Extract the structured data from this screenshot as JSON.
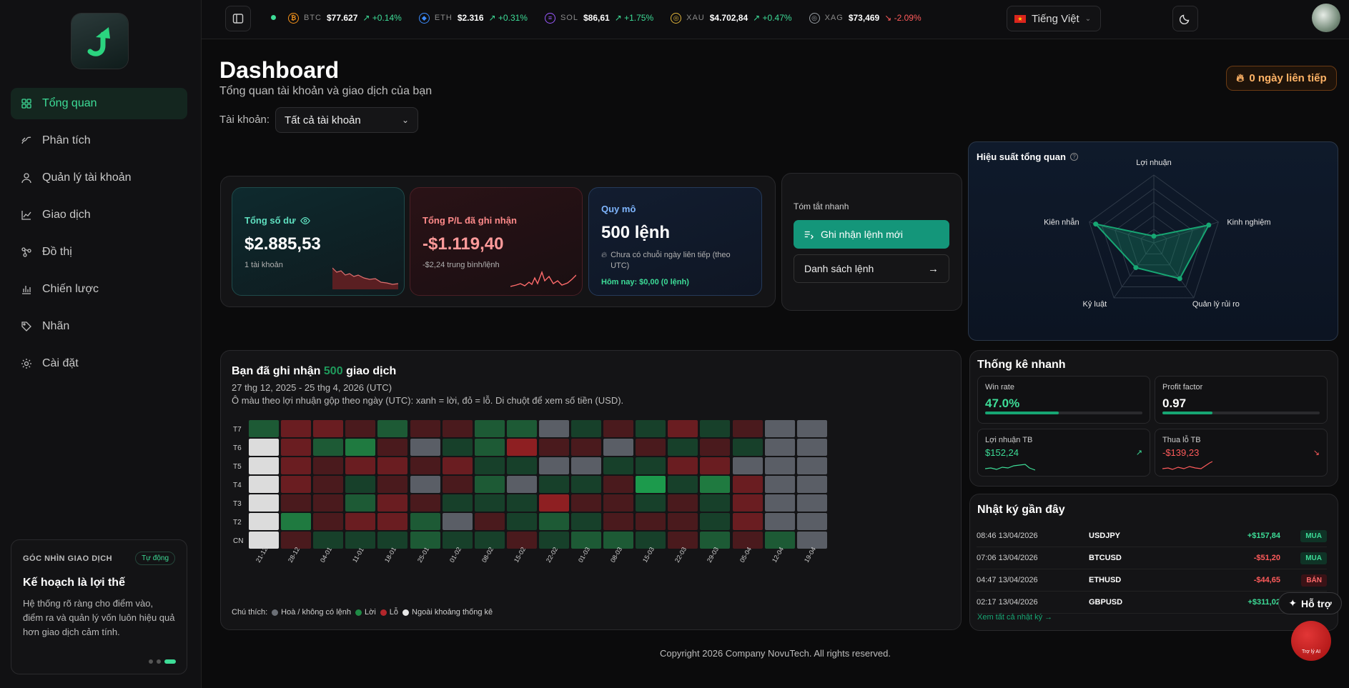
{
  "sidebar": {
    "items": [
      {
        "label": "Tổng quan",
        "icon": "grid-icon",
        "active": true
      },
      {
        "label": "Phân tích",
        "icon": "analytics-icon"
      },
      {
        "label": "Quản lý tài khoản",
        "icon": "user-icon"
      },
      {
        "label": "Giao dịch",
        "icon": "trend-icon"
      },
      {
        "label": "Đồ thị",
        "icon": "graph-icon"
      },
      {
        "label": "Chiến lược",
        "icon": "bar-chart-icon"
      },
      {
        "label": "Nhãn",
        "icon": "tag-icon"
      },
      {
        "label": "Cài đặt",
        "icon": "gear-icon"
      }
    ],
    "insight": {
      "heading": "GÓC NHÌN GIAO DỊCH",
      "badge": "Tự động",
      "title": "Kế hoạch là lợi thế",
      "body": "Hệ thống rõ ràng cho điểm vào, điểm ra và quản lý vốn luôn hiệu quả hơn giao dịch cảm tính."
    }
  },
  "ticker": [
    {
      "sym": "BTC",
      "price": "$77.627",
      "change": "+0.14%",
      "dir": "up",
      "color": "#f7931a",
      "glyph": "₿"
    },
    {
      "sym": "ETH",
      "price": "$2.316",
      "change": "+0.31%",
      "dir": "up",
      "color": "#3c8cff",
      "glyph": "◆"
    },
    {
      "sym": "SOL",
      "price": "$86,61",
      "change": "+1.75%",
      "dir": "up",
      "color": "#9b59ff",
      "glyph": "≡"
    },
    {
      "sym": "XAU",
      "price": "$4.702,84",
      "change": "+0.47%",
      "dir": "up",
      "color": "#e0b43a",
      "glyph": "◎"
    },
    {
      "sym": "XAG",
      "price": "$73,469",
      "change": "-2.09%",
      "dir": "dn",
      "color": "#9aa0a6",
      "glyph": "◎"
    }
  ],
  "header": {
    "language": "Tiếng Việt",
    "title": "Dashboard",
    "subtitle": "Tổng quan tài khoản và giao dịch của bạn",
    "account_label": "Tài khoản:",
    "account_value": "Tất cả tài khoản",
    "streak": "0 ngày liên tiếp"
  },
  "stats": {
    "balance": {
      "label": "Tổng số dư",
      "value": "$2.885,53",
      "sub": "1 tài khoản"
    },
    "pnl": {
      "label": "Tổng P/L đã ghi nhận",
      "value": "-$1.119,40",
      "sub": "-$2,24 trung bình/lệnh"
    },
    "scale": {
      "label": "Quy mô",
      "value": "500 lệnh",
      "note": "Chưa có chuỗi ngày liên tiếp (theo UTC)",
      "today": "Hôm nay: $0,00 (0 lệnh)"
    }
  },
  "quick": {
    "title": "Tóm tắt nhanh",
    "record_btn": "Ghi nhận lệnh mới",
    "list_btn": "Danh sách lệnh"
  },
  "radar": {
    "title": "Hiệu suất tổng quan",
    "axes": [
      "Lợi nhuận",
      "Kinh nghiệm",
      "Quản lý rủi ro",
      "Kỷ luật",
      "Kiên nhẫn"
    ],
    "values": [
      0.1,
      0.85,
      0.65,
      0.45,
      0.9
    ]
  },
  "heatmap": {
    "title_prefix": "Bạn đã ghi nhận",
    "title_count": "500",
    "title_suffix": "giao dịch",
    "range": "27 thg 12, 2025 - 25 thg 4, 2026 (UTC)",
    "desc": "Ô màu theo lợi nhuận gộp theo ngày (UTC): xanh = lời, đỏ = lỗ. Di chuột để xem số tiền (USD).",
    "rows": [
      "T7",
      "T6",
      "T5",
      "T4",
      "T3",
      "T2",
      "CN"
    ],
    "weeks": [
      "21-12",
      "28-12",
      "04-01",
      "11-01",
      "18-01",
      "25-01",
      "01-02",
      "08-02",
      "15-02",
      "22-02",
      "01-03",
      "08-03",
      "15-03",
      "22-03",
      "29-03",
      "05-04",
      "12-04",
      "19-04"
    ],
    "grid": [
      [
        "g2",
        "r2",
        "r2",
        "r1",
        "g2",
        "r1",
        "r1",
        "g2",
        "g2",
        "n",
        "g1",
        "r1",
        "g1",
        "r2",
        "g1",
        "r1",
        "n",
        "n"
      ],
      [
        "o",
        "r2",
        "g2",
        "g3",
        "r1",
        "n",
        "g1",
        "g2",
        "r3",
        "r1",
        "r1",
        "n",
        "r1",
        "g1",
        "r1",
        "g1",
        "n",
        "n"
      ],
      [
        "o",
        "r2",
        "r1",
        "r2",
        "r2",
        "r1",
        "r2",
        "g1",
        "g1",
        "n",
        "n",
        "g1",
        "g1",
        "r2",
        "r2",
        "n",
        "n",
        "n"
      ],
      [
        "o",
        "r2",
        "r1",
        "g1",
        "r1",
        "n",
        "r1",
        "g2",
        "n",
        "g1",
        "g1",
        "r1",
        "g4",
        "g1",
        "g3",
        "r2",
        "n",
        "n"
      ],
      [
        "o",
        "r1",
        "r1",
        "g2",
        "r2",
        "r1",
        "g1",
        "g1",
        "g1",
        "r3",
        "r1",
        "r1",
        "g1",
        "r1",
        "g1",
        "r2",
        "n",
        "n"
      ],
      [
        "o",
        "g3",
        "r1",
        "r2",
        "r2",
        "g2",
        "n",
        "r1",
        "g1",
        "g2",
        "g1",
        "r1",
        "r1",
        "r1",
        "g1",
        "r2",
        "n",
        "n"
      ],
      [
        "o",
        "r1",
        "g1",
        "g1",
        "g1",
        "g2",
        "g1",
        "g1",
        "r1",
        "g1",
        "g2",
        "g2",
        "g1",
        "r1",
        "g2",
        "r1",
        "g2",
        "n"
      ]
    ],
    "legend_label": "Chú thích:",
    "legend": [
      {
        "label": "Hoà / không có lệnh",
        "color": "#6b6f76"
      },
      {
        "label": "Lời",
        "color": "#1f8a45"
      },
      {
        "label": "Lỗ",
        "color": "#b3262b"
      },
      {
        "label": "Ngoài khoảng thống kê",
        "color": "#e6e6e6"
      }
    ]
  },
  "quick_stats": {
    "title": "Thống kê nhanh",
    "win_rate": {
      "label": "Win rate",
      "value": "47.0%",
      "fill": 0.47
    },
    "profit_factor": {
      "label": "Profit factor",
      "value": "0.97",
      "fill": 0.32
    },
    "avg_win": {
      "label": "Lợi nhuận TB",
      "value": "$152,24"
    },
    "avg_loss": {
      "label": "Thua lỗ TB",
      "value": "-$139,23"
    }
  },
  "journal": {
    "title": "Nhật ký gần đây",
    "rows": [
      {
        "time": "08:46 13/04/2026",
        "symbol": "USDJPY",
        "pnl": "+$157,84",
        "side": "MUA",
        "dir": "up"
      },
      {
        "time": "07:06 13/04/2026",
        "symbol": "BTCUSD",
        "pnl": "-$51,20",
        "side": "MUA",
        "dir": "dn"
      },
      {
        "time": "04:47 13/04/2026",
        "symbol": "ETHUSD",
        "pnl": "-$44,65",
        "side": "BÁN",
        "dir": "dn"
      },
      {
        "time": "02:17 13/04/2026",
        "symbol": "GBPUSD",
        "pnl": "+$311,02",
        "side": "",
        "dir": "up"
      }
    ],
    "view_all": "Xem tất cả nhật ký →"
  },
  "footer": "Copyright 2026 Company NovuTech. All rights reserved.",
  "help": "Hỗ trợ",
  "ai": "Trợ lý AI"
}
